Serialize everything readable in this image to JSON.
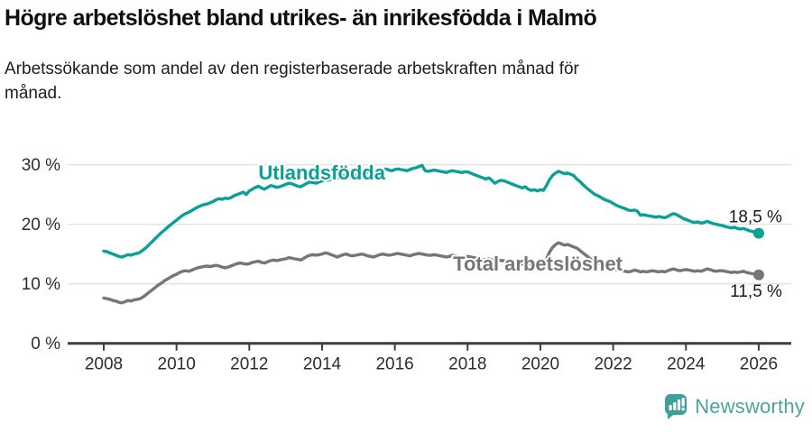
{
  "header": {
    "title": "Högre arbetslöshet bland utrikes- än inrikesfödda i Malmö",
    "subtitle": "Arbetssökande som andel av den registerbaserade arbetskraften månad för månad."
  },
  "chart_data": {
    "type": "line",
    "x_start_year": 2008,
    "frequency": "monthly",
    "x_ticks": [
      2008,
      2010,
      2012,
      2014,
      2016,
      2018,
      2020,
      2022,
      2024,
      2026
    ],
    "y_ticks": [
      0,
      10,
      20,
      30
    ],
    "y_tick_labels": [
      "0 %",
      "10 %",
      "20 %",
      "30 %"
    ],
    "ylim": [
      0,
      30
    ],
    "grid": "horizontal",
    "colors": {
      "grid": "#e3e3e3",
      "axis": "#3e3e3e",
      "tick_text": "#2d2d2d",
      "end_label_text": "#1a1a1a"
    },
    "series": [
      {
        "name": "Utlandsfödda",
        "color": "#0aa096",
        "end_label": "18,5 %",
        "end_value": 18.5,
        "label_year": 2012.25,
        "label_value": 27.5,
        "values": [
          15.5,
          15.4,
          15.2,
          15.0,
          14.8,
          14.6,
          14.5,
          14.7,
          14.9,
          14.8,
          15.0,
          15.1,
          15.3,
          15.7,
          16.1,
          16.6,
          17.1,
          17.6,
          18.1,
          18.6,
          19.0,
          19.5,
          19.9,
          20.3,
          20.7,
          21.1,
          21.5,
          21.8,
          22.0,
          22.3,
          22.6,
          22.9,
          23.1,
          23.3,
          23.4,
          23.6,
          23.8,
          24.1,
          24.3,
          24.2,
          24.4,
          24.3,
          24.5,
          24.8,
          25.0,
          25.2,
          25.4,
          25.0,
          25.6,
          25.9,
          26.2,
          26.4,
          26.1,
          25.9,
          26.2,
          26.5,
          26.4,
          26.2,
          26.3,
          26.5,
          26.7,
          26.9,
          26.8,
          26.6,
          26.4,
          26.3,
          26.6,
          26.9,
          27.1,
          27.0,
          26.9,
          27.1,
          27.3,
          27.5,
          27.4,
          27.6,
          27.8,
          27.7,
          27.9,
          28.2,
          28.1,
          27.9,
          28.0,
          28.2,
          28.4,
          28.6,
          28.5,
          28.7,
          28.6,
          28.4,
          28.7,
          28.9,
          29.1,
          29.3,
          29.1,
          29.0,
          29.2,
          29.3,
          29.2,
          29.1,
          29.0,
          29.2,
          29.4,
          29.5,
          29.7,
          29.9,
          29.0,
          28.9,
          29.0,
          29.1,
          29.0,
          28.9,
          28.8,
          28.7,
          28.9,
          29.0,
          28.9,
          28.8,
          28.7,
          28.8,
          28.8,
          28.6,
          28.4,
          28.2,
          28.0,
          27.8,
          27.6,
          27.8,
          27.4,
          26.9,
          27.2,
          27.4,
          27.3,
          27.1,
          26.9,
          26.7,
          26.5,
          26.3,
          26.1,
          26.3,
          25.9,
          25.7,
          25.8,
          25.6,
          25.8,
          25.7,
          26.5,
          27.5,
          28.2,
          28.6,
          28.9,
          28.7,
          28.5,
          28.6,
          28.4,
          28.2,
          27.6,
          27.2,
          26.7,
          26.2,
          25.8,
          25.4,
          25.0,
          24.8,
          24.5,
          24.2,
          24.0,
          23.8,
          23.5,
          23.2,
          23.0,
          22.8,
          22.6,
          22.4,
          22.3,
          22.4,
          22.2,
          21.5,
          21.6,
          21.5,
          21.4,
          21.3,
          21.2,
          21.3,
          21.2,
          21.1,
          21.3,
          21.6,
          21.8,
          21.6,
          21.3,
          21.0,
          20.8,
          20.6,
          20.4,
          20.3,
          20.4,
          20.2,
          20.3,
          20.5,
          20.3,
          20.1,
          20.0,
          19.9,
          19.8,
          19.6,
          19.5,
          19.4,
          19.5,
          19.3,
          19.2,
          19.3,
          19.1,
          18.9,
          18.8,
          18.6,
          18.5
        ]
      },
      {
        "name": "Total arbetslöshet",
        "color": "#76757b",
        "end_label": "11,5 %",
        "end_value": 11.5,
        "label_year": 2017.6,
        "label_value": 12.2,
        "values": [
          7.6,
          7.5,
          7.4,
          7.2,
          7.1,
          6.9,
          6.8,
          7.0,
          7.2,
          7.1,
          7.3,
          7.4,
          7.5,
          7.8,
          8.2,
          8.6,
          9.0,
          9.4,
          9.8,
          10.1,
          10.5,
          10.8,
          11.1,
          11.4,
          11.6,
          11.9,
          12.1,
          12.2,
          12.1,
          12.3,
          12.5,
          12.7,
          12.8,
          12.9,
          13.0,
          12.9,
          13.0,
          13.1,
          13.0,
          12.8,
          12.7,
          12.8,
          13.0,
          13.2,
          13.4,
          13.5,
          13.4,
          13.3,
          13.4,
          13.6,
          13.7,
          13.8,
          13.6,
          13.5,
          13.7,
          13.9,
          14.0,
          13.9,
          14.0,
          14.1,
          14.2,
          14.4,
          14.3,
          14.2,
          14.1,
          14.0,
          14.3,
          14.6,
          14.8,
          14.9,
          14.8,
          14.9,
          15.0,
          15.2,
          15.1,
          14.9,
          14.7,
          14.5,
          14.7,
          14.9,
          15.0,
          14.8,
          14.7,
          14.8,
          14.9,
          15.0,
          14.9,
          14.7,
          14.6,
          14.5,
          14.7,
          14.9,
          15.0,
          14.9,
          14.8,
          14.9,
          15.0,
          15.1,
          15.0,
          14.9,
          14.8,
          14.7,
          14.9,
          15.0,
          15.1,
          15.0,
          14.9,
          14.8,
          14.8,
          14.9,
          14.8,
          14.7,
          14.6,
          14.5,
          14.6,
          14.8,
          14.7,
          14.6,
          14.5,
          14.6,
          14.6,
          14.5,
          14.4,
          14.3,
          14.2,
          14.1,
          14.0,
          14.2,
          14.0,
          13.9,
          14.0,
          13.9,
          13.9,
          13.8,
          13.7,
          13.6,
          13.5,
          13.4,
          13.3,
          13.5,
          13.4,
          13.3,
          13.4,
          13.3,
          13.4,
          13.5,
          14.2,
          15.3,
          16.1,
          16.6,
          16.9,
          16.7,
          16.5,
          16.6,
          16.4,
          16.2,
          16.0,
          15.6,
          15.2,
          14.8,
          14.4,
          14.0,
          13.7,
          13.5,
          13.2,
          13.0,
          12.8,
          12.6,
          12.5,
          12.4,
          12.3,
          12.2,
          12.1,
          12.0,
          12.1,
          12.3,
          12.2,
          12.0,
          12.1,
          12.0,
          12.1,
          12.2,
          12.1,
          12.0,
          12.1,
          12.0,
          12.2,
          12.4,
          12.5,
          12.3,
          12.2,
          12.3,
          12.4,
          12.3,
          12.2,
          12.1,
          12.2,
          12.1,
          12.3,
          12.5,
          12.4,
          12.2,
          12.1,
          12.2,
          12.2,
          12.1,
          12.0,
          11.9,
          12.0,
          11.9,
          12.0,
          12.1,
          11.9,
          11.8,
          11.7,
          11.6,
          11.5
        ]
      }
    ]
  },
  "footer": {
    "brand": "Newsworthy",
    "logo_color": "#3f9f99"
  }
}
